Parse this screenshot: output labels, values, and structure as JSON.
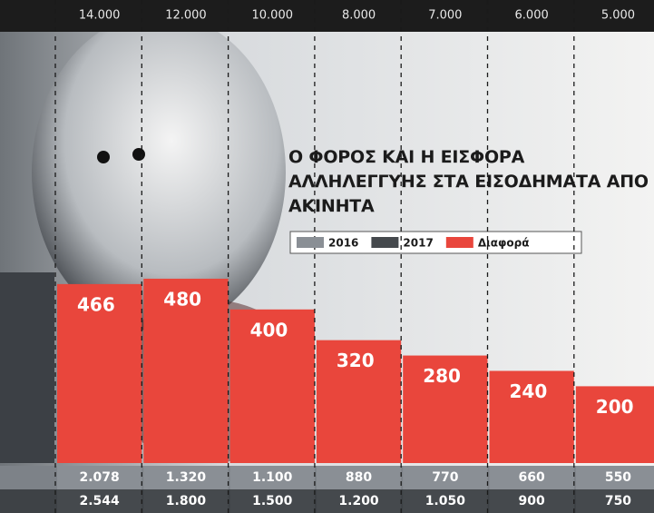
{
  "chart_data": {
    "type": "bar",
    "title": "Ο ΦΟΡΟΣ ΚΑΙ Η ΕΙΣΦΟΡΑ ΑΛΛΗΛΕΓΓΥΗΣ ΣΤΑ ΕΙΣΟΔΗΜΑΤΑ ΑΠΟ ΑΚΙΝΗΤΑ",
    "categories": [
      "14.000",
      "12.000",
      "10.000",
      "8.000",
      "7.000",
      "6.000",
      "5.000"
    ],
    "series": [
      {
        "name": "2016",
        "color": "#8a8f95",
        "values": [
          2078,
          1320,
          1100,
          880,
          770,
          660,
          550
        ],
        "value_labels": [
          "2.078",
          "1.320",
          "1.100",
          "880",
          "770",
          "660",
          "550"
        ]
      },
      {
        "name": "2017",
        "color": "#45494d",
        "values": [
          2544,
          1800,
          1500,
          1200,
          1050,
          900,
          750
        ],
        "value_labels": [
          "2.544",
          "1.800",
          "1.500",
          "1.200",
          "1.050",
          "900",
          "750"
        ]
      },
      {
        "name": "Διαφορά",
        "color": "#e9463c",
        "values": [
          466,
          480,
          400,
          320,
          280,
          240,
          200
        ]
      }
    ]
  }
}
